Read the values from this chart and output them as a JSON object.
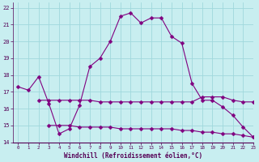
{
  "line1_x": [
    0,
    1,
    2,
    3,
    4,
    5,
    6,
    7,
    8,
    9,
    10,
    11,
    12,
    13,
    14,
    15,
    16,
    17,
    18,
    19,
    20,
    21,
    22,
    23
  ],
  "line1_y": [
    17.3,
    17.1,
    17.9,
    16.3,
    14.5,
    14.8,
    16.2,
    18.5,
    19.0,
    20.0,
    21.5,
    21.7,
    21.1,
    21.4,
    21.4,
    20.3,
    19.9,
    17.5,
    16.5,
    16.5,
    16.1,
    15.6,
    14.9,
    14.3
  ],
  "line2_x": [
    2,
    3,
    4,
    5,
    6,
    7,
    8,
    9,
    10,
    11,
    12,
    13,
    14,
    15,
    16,
    17,
    18,
    19,
    20,
    21,
    22,
    23
  ],
  "line2_y": [
    16.5,
    16.5,
    16.5,
    16.5,
    16.5,
    16.5,
    16.4,
    16.4,
    16.4,
    16.4,
    16.4,
    16.4,
    16.4,
    16.4,
    16.4,
    16.4,
    16.7,
    16.7,
    16.7,
    16.5,
    16.4,
    16.4
  ],
  "line3_x": [
    3,
    4,
    5,
    6,
    7,
    8,
    9,
    10,
    11,
    12,
    13,
    14,
    15,
    16,
    17,
    18,
    19,
    20,
    21,
    22,
    23
  ],
  "line3_y": [
    15.0,
    15.0,
    15.0,
    14.9,
    14.9,
    14.9,
    14.9,
    14.8,
    14.8,
    14.8,
    14.8,
    14.8,
    14.8,
    14.7,
    14.7,
    14.6,
    14.6,
    14.5,
    14.5,
    14.4,
    14.3
  ],
  "line_color": "#800080",
  "bg_color": "#c8eef0",
  "grid_color": "#a0d8dc",
  "xlabel": "Windchill (Refroidissement éolien,°C)",
  "xlim": [
    -0.5,
    23
  ],
  "ylim": [
    14,
    22.3
  ],
  "xticks": [
    0,
    1,
    2,
    3,
    4,
    5,
    6,
    7,
    8,
    9,
    10,
    11,
    12,
    13,
    14,
    15,
    16,
    17,
    18,
    19,
    20,
    21,
    22,
    23
  ],
  "yticks": [
    14,
    15,
    16,
    17,
    18,
    19,
    20,
    21,
    22
  ],
  "markersize": 2.5
}
